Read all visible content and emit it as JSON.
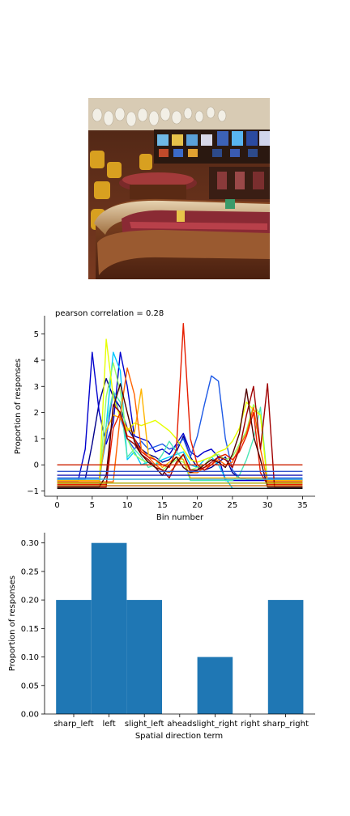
{
  "image_panel": {
    "subject": "casino interior with roulette/craps table, slot machines and chandeliers",
    "colors": [
      "#6b2a1a",
      "#c9a46a",
      "#a33a3a",
      "#d9cfc0",
      "#2d4a8a",
      "#e0b94a"
    ]
  },
  "chart_data": [
    {
      "type": "line",
      "title": "pearson correlation = 0.28",
      "xlabel": "Bin number",
      "ylabel": "Proportion of responses",
      "xlim": [
        -1.8,
        36.8
      ],
      "ylim": [
        -1.2,
        5.7
      ],
      "xticks": [
        0,
        5,
        10,
        15,
        20,
        25,
        30,
        35
      ],
      "yticks": [
        -1,
        0,
        1,
        2,
        3,
        4,
        5
      ],
      "legend": "none",
      "series": [
        {
          "color": "#00008b",
          "x": [
            0,
            4,
            5,
            6,
            7,
            8,
            9,
            10,
            11,
            12,
            13,
            14,
            15,
            16,
            17,
            18,
            19,
            20,
            21,
            22,
            23,
            24,
            25,
            26,
            27,
            28,
            29,
            30,
            31,
            35
          ],
          "y": [
            -0.55,
            -0.55,
            0.8,
            2.4,
            3.3,
            2.6,
            2.2,
            1.4,
            1.0,
            0.6,
            0.4,
            0.3,
            0.1,
            0.2,
            0.5,
            1.1,
            0.3,
            -0.1,
            -0.2,
            -0.1,
            0.1,
            0.3,
            -0.3,
            -0.5,
            -0.55,
            -0.55,
            -0.55,
            -0.55,
            -0.55,
            -0.55
          ]
        },
        {
          "color": "#0000cd",
          "x": [
            0,
            3,
            4,
            5,
            6,
            7,
            8,
            9,
            10,
            11,
            12,
            13,
            14,
            15,
            16,
            17,
            18,
            19,
            20,
            21,
            22,
            23,
            24,
            25,
            26,
            27,
            28,
            29,
            30,
            35
          ],
          "y": [
            -0.6,
            -0.6,
            0.6,
            4.3,
            2.0,
            0.8,
            1.6,
            4.3,
            3.0,
            1.1,
            1.0,
            0.9,
            0.5,
            0.6,
            0.4,
            0.8,
            1.2,
            0.5,
            0.3,
            0.5,
            0.6,
            0.3,
            -0.6,
            -0.6,
            -0.6,
            -0.6,
            -0.6,
            -0.6,
            -0.6,
            -0.6
          ]
        },
        {
          "color": "#1e5ae6",
          "x": [
            0,
            5,
            6,
            7,
            8,
            9,
            10,
            11,
            12,
            13,
            14,
            15,
            16,
            17,
            18,
            19,
            20,
            21,
            22,
            23,
            24,
            25,
            26,
            27,
            28,
            29,
            30,
            35
          ],
          "y": [
            -0.5,
            -0.5,
            -0.5,
            1.0,
            2.8,
            1.8,
            1.0,
            0.6,
            0.9,
            0.6,
            0.7,
            0.8,
            0.6,
            0.7,
            1.0,
            0.3,
            1.1,
            2.3,
            3.4,
            3.2,
            1.0,
            -0.2,
            -0.5,
            -0.5,
            -0.5,
            -0.5,
            -0.5,
            -0.5
          ]
        },
        {
          "color": "#00c8ff",
          "x": [
            0,
            5,
            6,
            7,
            8,
            9,
            10,
            11,
            12,
            13,
            14,
            15,
            16,
            17,
            18,
            19,
            20,
            21,
            22,
            23,
            24,
            25,
            26,
            27,
            28,
            29,
            30,
            35
          ],
          "y": [
            -0.8,
            -0.8,
            -0.8,
            1.5,
            4.3,
            3.6,
            0.2,
            0.5,
            0.0,
            0.1,
            0.0,
            0.2,
            0.3,
            0.4,
            0.5,
            0.0,
            -0.1,
            0.2,
            0.3,
            0.0,
            -0.5,
            -0.9,
            -0.9,
            -0.9,
            -0.9,
            -0.9,
            -0.9,
            -0.9
          ]
        },
        {
          "color": "#4be6b4",
          "x": [
            0,
            6,
            7,
            8,
            9,
            10,
            11,
            12,
            13,
            14,
            15,
            16,
            17,
            18,
            19,
            20,
            21,
            22,
            23,
            24,
            25,
            26,
            27,
            28,
            29,
            30,
            35
          ],
          "y": [
            -0.65,
            -0.65,
            1.5,
            2.8,
            2.4,
            0.3,
            0.6,
            0.3,
            -0.1,
            0.0,
            0.4,
            0.9,
            0.5,
            0.2,
            -0.6,
            -0.6,
            -0.6,
            -0.6,
            -0.6,
            -0.6,
            -0.6,
            -0.4,
            0.2,
            1.0,
            2.2,
            -0.65,
            -0.65
          ]
        },
        {
          "color": "#96ff64",
          "x": [
            0,
            6,
            7,
            8,
            9,
            10,
            11,
            12,
            13,
            14,
            15,
            16,
            17,
            18,
            19,
            20,
            21,
            22,
            23,
            24,
            25,
            26,
            27,
            28,
            29,
            30,
            35
          ],
          "y": [
            -0.7,
            -0.7,
            2.6,
            3.9,
            2.8,
            1.0,
            0.4,
            0.2,
            0.1,
            -0.1,
            -0.2,
            0.0,
            0.2,
            0.1,
            -0.2,
            -0.1,
            0.0,
            0.3,
            0.4,
            0.2,
            0.3,
            0.8,
            1.3,
            2.3,
            1.9,
            -0.7,
            -0.7
          ]
        },
        {
          "color": "#e6ff00",
          "x": [
            0,
            6,
            7,
            8,
            9,
            10,
            11,
            12,
            13,
            14,
            15,
            16,
            17,
            18,
            19,
            20,
            21,
            22,
            23,
            24,
            25,
            26,
            27,
            28,
            29,
            30,
            35
          ],
          "y": [
            -0.7,
            -0.7,
            4.8,
            2.6,
            1.8,
            1.3,
            1.6,
            1.5,
            1.6,
            1.7,
            1.5,
            1.3,
            1.0,
            0.6,
            0.2,
            0.1,
            0.2,
            0.3,
            0.5,
            0.6,
            0.9,
            1.4,
            2.4,
            2.1,
            1.9,
            -0.7,
            -0.7
          ]
        },
        {
          "color": "#ffb400",
          "x": [
            0,
            6,
            7,
            8,
            9,
            10,
            11,
            12,
            13,
            14,
            15,
            16,
            17,
            18,
            19,
            20,
            21,
            22,
            23,
            24,
            25,
            26,
            27,
            28,
            29,
            30,
            35
          ],
          "y": [
            -0.6,
            -0.6,
            1.3,
            1.9,
            1.8,
            1.4,
            1.2,
            2.9,
            0.4,
            0.2,
            -0.1,
            0.1,
            0.3,
            0.2,
            -0.5,
            -0.5,
            -0.5,
            -0.5,
            -0.5,
            -0.5,
            -0.5,
            -0.5,
            -0.5,
            -0.5,
            -0.5,
            -0.6,
            -0.6
          ]
        },
        {
          "color": "#ff6400",
          "x": [
            0,
            7,
            8,
            9,
            10,
            11,
            12,
            13,
            14,
            15,
            16,
            17,
            18,
            19,
            20,
            21,
            22,
            23,
            24,
            25,
            26,
            27,
            28,
            29,
            30,
            35
          ],
          "y": [
            -0.65,
            -0.65,
            -0.65,
            1.9,
            3.7,
            2.7,
            0.6,
            0.3,
            0.0,
            -0.2,
            -0.3,
            0.0,
            0.4,
            -0.3,
            -0.3,
            -0.1,
            0.0,
            0.2,
            0.0,
            0.1,
            0.7,
            1.2,
            2.2,
            0.6,
            -0.65,
            -0.65
          ]
        },
        {
          "color": "#e61e00",
          "x": [
            0,
            7,
            8,
            9,
            10,
            11,
            12,
            13,
            14,
            15,
            16,
            17,
            18,
            19,
            20,
            21,
            22,
            23,
            24,
            25,
            26,
            27,
            28,
            29,
            30,
            35
          ],
          "y": [
            -0.75,
            -0.75,
            1.4,
            2.0,
            1.1,
            1.0,
            0.5,
            0.3,
            0.2,
            0.0,
            -0.1,
            0.6,
            5.4,
            1.0,
            0.0,
            -0.2,
            0.0,
            0.3,
            0.4,
            0.2,
            0.5,
            1.1,
            2.0,
            -0.3,
            -0.75,
            -0.75
          ]
        },
        {
          "color": "#a00000",
          "x": [
            0,
            7,
            8,
            9,
            10,
            11,
            12,
            13,
            14,
            15,
            16,
            17,
            18,
            19,
            20,
            21,
            22,
            23,
            24,
            25,
            26,
            27,
            28,
            29,
            30,
            31,
            35
          ],
          "y": [
            -0.85,
            -0.85,
            2.3,
            2.0,
            1.0,
            0.8,
            0.4,
            0.2,
            -0.1,
            -0.2,
            -0.5,
            0.1,
            0.4,
            -0.2,
            -0.2,
            -0.1,
            0.1,
            0.3,
            0.2,
            -0.1,
            0.6,
            1.9,
            3.0,
            0.6,
            3.1,
            -0.85,
            -0.85
          ]
        },
        {
          "color": "#500000",
          "x": [
            0,
            6,
            7,
            8,
            9,
            10,
            11,
            12,
            13,
            14,
            15,
            16,
            17,
            18,
            19,
            20,
            21,
            22,
            23,
            24,
            25,
            26,
            27,
            28,
            29,
            30,
            35
          ],
          "y": [
            -0.85,
            -0.85,
            -0.4,
            2.2,
            3.1,
            2.0,
            0.9,
            0.4,
            0.1,
            -0.1,
            -0.4,
            0.0,
            0.3,
            -0.1,
            -0.3,
            -0.2,
            0.0,
            0.2,
            0.1,
            -0.1,
            0.4,
            1.2,
            2.9,
            1.1,
            0.2,
            -0.85,
            -0.85
          ]
        },
        {
          "color": "#cc2200",
          "x": [
            0,
            35
          ],
          "y": [
            0.0,
            0.0
          ]
        },
        {
          "color": "#3355cc",
          "x": [
            0,
            35
          ],
          "y": [
            -0.25,
            -0.25
          ]
        },
        {
          "color": "#1a1ab4",
          "x": [
            0,
            35
          ],
          "y": [
            -0.4,
            -0.4
          ]
        },
        {
          "color": "#3cb4dc",
          "x": [
            0,
            35
          ],
          "y": [
            -0.55,
            -0.55
          ]
        },
        {
          "color": "#aaaa00",
          "x": [
            0,
            35
          ],
          "y": [
            -0.7,
            -0.7
          ]
        },
        {
          "color": "#c86400",
          "x": [
            0,
            35
          ],
          "y": [
            -0.8,
            -0.8
          ]
        },
        {
          "color": "#111111",
          "x": [
            0,
            35
          ],
          "y": [
            -0.9,
            -0.9
          ]
        }
      ]
    },
    {
      "type": "bar",
      "xlabel": "Spatial direction term",
      "ylabel": "Proportion of responses",
      "categories": [
        "sharp_left",
        "left",
        "slight_left",
        "ahead",
        "slight_right",
        "right",
        "sharp_right"
      ],
      "values": [
        0.2,
        0.3,
        0.2,
        0.0,
        0.1,
        0.0,
        0.2
      ],
      "ylim": [
        0,
        0.318
      ],
      "yticks": [
        "0.00",
        "0.05",
        "0.10",
        "0.15",
        "0.20",
        "0.25",
        "0.30"
      ],
      "bar_color": "#1f77b4",
      "legend": "none"
    }
  ]
}
